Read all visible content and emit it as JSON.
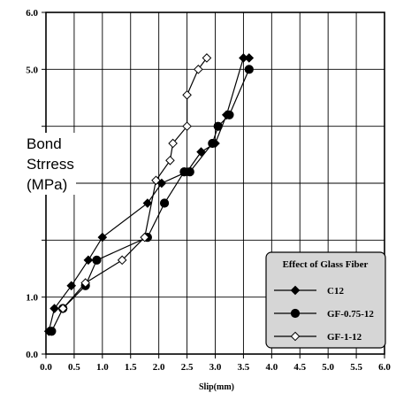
{
  "chart_data": {
    "type": "line",
    "xlabel": "Slip(mm)",
    "ylabel_lines": [
      "Bond",
      "Strress",
      "(MPa)"
    ],
    "xlim": [
      0,
      6
    ],
    "ylim": [
      0,
      6
    ],
    "x_ticks": [
      "0.0",
      "0.5",
      "1.0",
      "1.5",
      "2.0",
      "2.5",
      "3.0",
      "3.5",
      "4.0",
      "4.5",
      "5.0",
      "5.5",
      "6.0"
    ],
    "y_tick_labels": [
      {
        "value": 0,
        "label": "0.0"
      },
      {
        "value": 1,
        "label": "1.0"
      },
      {
        "value": 5,
        "label": "5.0"
      },
      {
        "value": 6,
        "label": "6.0"
      }
    ],
    "grid": true,
    "legend": {
      "title": "Effect of Glass Fiber",
      "placement": "bottom-right"
    },
    "series": [
      {
        "name": "C12",
        "marker": "filled-diamond",
        "x": [
          0.05,
          0.15,
          0.45,
          0.75,
          1.0,
          1.8,
          2.05,
          2.5,
          2.75,
          3.0,
          3.2,
          3.5,
          3.6
        ],
        "y": [
          0.4,
          0.8,
          1.2,
          1.65,
          2.05,
          2.65,
          3.0,
          3.2,
          3.55,
          3.7,
          4.2,
          5.2,
          5.2
        ]
      },
      {
        "name": "GF-0.75-12",
        "marker": "filled-circle",
        "x": [
          0.1,
          0.3,
          0.7,
          0.9,
          1.8,
          2.1,
          2.45,
          2.55,
          2.95,
          3.05,
          3.25,
          3.6
        ],
        "y": [
          0.4,
          0.8,
          1.2,
          1.65,
          2.05,
          2.65,
          3.2,
          3.2,
          3.7,
          4.0,
          4.2,
          5.0
        ]
      },
      {
        "name": "GF-1-12",
        "marker": "open-diamond",
        "x": [
          0.3,
          0.7,
          1.35,
          1.75,
          1.95,
          2.2,
          2.25,
          2.5,
          2.5,
          2.7,
          2.85
        ],
        "y": [
          0.8,
          1.25,
          1.65,
          2.05,
          3.05,
          3.4,
          3.7,
          4.0,
          4.55,
          5.0,
          5.2
        ]
      }
    ]
  }
}
